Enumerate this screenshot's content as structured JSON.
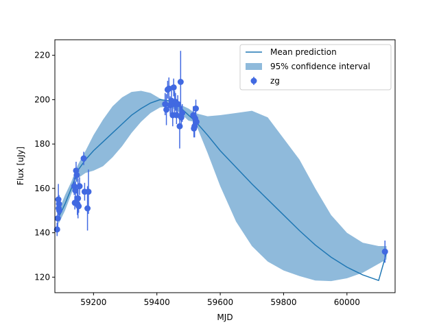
{
  "chart_data": {
    "type": "scatter",
    "xlabel": "MJD",
    "ylabel": "Flux [uJy]",
    "xlim": [
      59078,
      60152
    ],
    "ylim": [
      113,
      227
    ],
    "xticks": [
      59200,
      59400,
      59600,
      59800,
      60000
    ],
    "yticks": [
      120,
      140,
      160,
      180,
      200,
      220
    ],
    "grid": false,
    "legend_position": "top-right",
    "legend": [
      {
        "label": "Mean prediction",
        "kind": "line",
        "color": "#1f77b4"
      },
      {
        "label": "95% confidence interval",
        "kind": "patch",
        "color": "#8fbadb"
      },
      {
        "label": "zg",
        "kind": "errorbar",
        "color": "#4169e1"
      }
    ],
    "series": [
      {
        "name": "Mean prediction",
        "type": "line",
        "color": "#1f77b4",
        "x": [
          59090,
          59110,
          59130,
          59150,
          59175,
          59200,
          59230,
          59260,
          59290,
          59320,
          59350,
          59380,
          59410,
          59440,
          59470,
          59500,
          59520,
          59560,
          59600,
          59650,
          59700,
          59750,
          59800,
          59850,
          59900,
          59950,
          60000,
          60050,
          60100,
          60125
        ],
        "y": [
          147,
          153,
          160,
          168,
          173,
          177,
          181,
          185,
          189,
          193,
          196,
          198.5,
          200,
          199.5,
          197,
          193,
          190.5,
          184,
          177,
          169.5,
          162,
          155,
          148,
          141,
          134.5,
          129,
          124.5,
          121,
          118.5,
          131
        ]
      },
      {
        "name": "95% confidence interval",
        "type": "band",
        "color": "#8fbadb",
        "x": [
          59090,
          59110,
          59130,
          59150,
          59175,
          59200,
          59230,
          59260,
          59290,
          59320,
          59350,
          59380,
          59410,
          59440,
          59470,
          59500,
          59520,
          59560,
          59600,
          59650,
          59700,
          59750,
          59800,
          59850,
          59900,
          59950,
          60000,
          60050,
          60100,
          60125
        ],
        "lower": [
          144,
          150,
          157.5,
          164.5,
          167,
          168,
          170,
          174,
          179,
          185,
          190,
          194,
          196.5,
          197,
          194.5,
          190.5,
          190,
          176,
          161,
          145,
          134,
          127,
          123,
          120.5,
          118.5,
          118.2,
          119.5,
          122,
          126,
          128
        ],
        "upper": [
          150,
          157,
          163,
          170.5,
          177,
          184,
          191,
          197,
          201,
          203.5,
          204,
          203,
          200.5,
          199,
          198,
          196,
          194,
          192.5,
          193,
          194,
          195,
          192,
          182.5,
          173,
          160,
          148,
          140,
          135.5,
          134,
          134
        ]
      },
      {
        "name": "zg",
        "type": "errorbar",
        "color": "#4169e1",
        "x": [
          59085,
          59087,
          59089,
          59090,
          59091,
          59092,
          59139,
          59141,
          59143,
          59145,
          59147,
          59149,
          59151,
          59153,
          59156,
          59169,
          59172,
          59181,
          59184,
          59426,
          59430,
          59434,
          59438,
          59442,
          59446,
          59450,
          59453,
          59456,
          59459,
          59462,
          59466,
          59472,
          59475,
          59477,
          59480,
          59515,
          59517,
          59519,
          59521,
          59523,
          59525,
          60120
        ],
        "y": [
          141.5,
          146.5,
          155,
          151,
          153,
          150,
          161,
          153.5,
          159,
          168,
          166,
          153,
          155.5,
          152,
          161,
          173.5,
          158.5,
          151,
          158.5,
          198,
          195.5,
          204.5,
          205,
          197.5,
          199.5,
          193,
          205.5,
          198,
          199,
          193,
          198,
          188,
          208,
          192,
          194,
          193,
          187,
          188,
          191.5,
          196,
          190,
          131.5
        ],
        "yerr": [
          3,
          4,
          7,
          3,
          4,
          3,
          4,
          3,
          4,
          4,
          3,
          5,
          9,
          3,
          4,
          3,
          4,
          10,
          10,
          5,
          7,
          4,
          5,
          4,
          6,
          5,
          4,
          6,
          4,
          4,
          4,
          10,
          14,
          5,
          4,
          4,
          4,
          5,
          3,
          4,
          3,
          5
        ]
      }
    ]
  }
}
